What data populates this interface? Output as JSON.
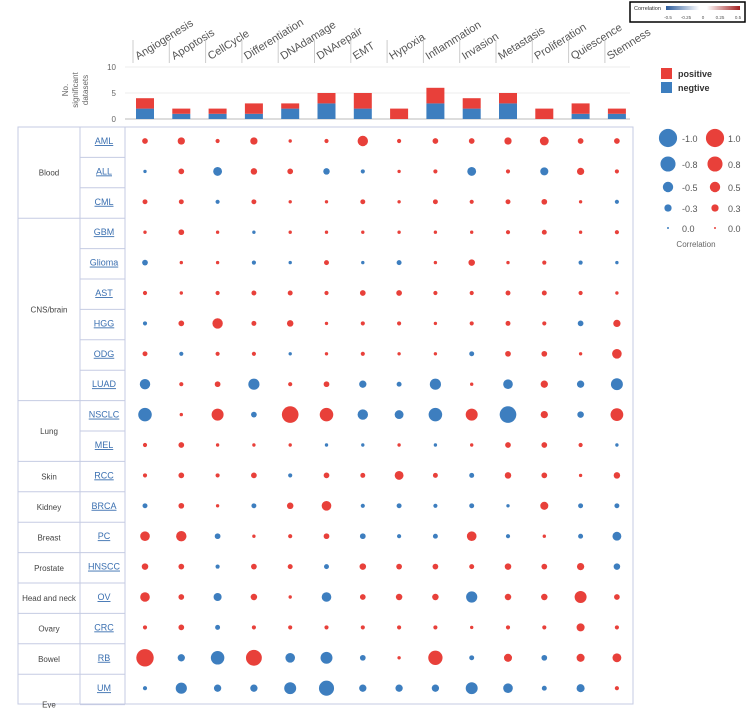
{
  "colors": {
    "positive": "#e8403a",
    "negative": "#3d7ebf",
    "grid_border": "#c5cbe3",
    "text": "#555555",
    "link": "#3a6fb0"
  },
  "colorbar": {
    "title": "Correlation",
    "ticks": [
      "-0.5",
      "-0.25",
      "0",
      "0.25",
      "0.5"
    ]
  },
  "bar_legend": {
    "positive": "positive",
    "negative": "negtive"
  },
  "size_legend": {
    "title": "Correlation",
    "negative_labels": [
      "-1.0",
      "-0.8",
      "-0.5",
      "-0.3",
      "0.0"
    ],
    "positive_labels": [
      "1.0",
      "0.8",
      "0.5",
      "0.3",
      "0.0"
    ],
    "values": [
      1.0,
      0.8,
      0.5,
      0.3,
      0.0
    ]
  },
  "chart_data": {
    "type": "dot-matrix with stacked bar summary",
    "states": [
      "Angiogenesis",
      "Apoptosis",
      "CellCycle",
      "Differentiation",
      "DNAdamage",
      "DNArepair",
      "EMT",
      "Hypoxia",
      "Inflammation",
      "Invasion",
      "Metastasis",
      "Proliferation",
      "Quiescence",
      "Stemness"
    ],
    "bar_chart": {
      "ylabel": [
        "No.",
        "significant",
        "datasets"
      ],
      "yticks": [
        0,
        5,
        10
      ],
      "ylim": [
        0,
        10
      ],
      "series": [
        {
          "name": "positive",
          "values": [
            2,
            1,
            1,
            2,
            1,
            2,
            3,
            2,
            3,
            2,
            2,
            2,
            2,
            1
          ]
        },
        {
          "name": "negtive",
          "values": [
            2,
            1,
            1,
            1,
            2,
            3,
            2,
            0,
            3,
            2,
            3,
            0,
            1,
            1
          ]
        }
      ]
    },
    "groups": [
      {
        "name": "Blood",
        "count": 3
      },
      {
        "name": "CNS/brain",
        "count": 6
      },
      {
        "name": "Lung",
        "count": 2
      },
      {
        "name": "Skin",
        "count": 1
      },
      {
        "name": "Kidney",
        "count": 1
      },
      {
        "name": "Breast",
        "count": 1
      },
      {
        "name": "Prostate",
        "count": 1
      },
      {
        "name": "Head and neck",
        "count": 1
      },
      {
        "name": "Ovary",
        "count": 1
      },
      {
        "name": "Bowel",
        "count": 1
      },
      {
        "name": "Eye",
        "count": 2
      }
    ],
    "cancers": [
      "AML",
      "ALL",
      "CML",
      "GBM",
      "Glioma",
      "AST",
      "HGG",
      "ODG",
      "LUAD",
      "NSCLC",
      "MEL",
      "RCC",
      "BRCA",
      "PC",
      "HNSCC",
      "OV",
      "CRC",
      "RB",
      "UM"
    ],
    "correlations": [
      [
        0.2,
        0.3,
        0.1,
        0.3,
        0.05,
        0.1,
        0.5,
        0.1,
        0.2,
        0.2,
        0.3,
        0.4,
        0.2,
        0.2
      ],
      [
        -0.05,
        0.2,
        -0.4,
        0.25,
        0.2,
        -0.25,
        -0.1,
        0.05,
        0.1,
        -0.4,
        0.1,
        -0.35,
        0.3,
        0.1
      ],
      [
        0.15,
        0.15,
        -0.1,
        0.15,
        0.05,
        0.05,
        0.15,
        0.05,
        0.15,
        0.1,
        0.15,
        0.2,
        0.05,
        -0.1
      ],
      [
        0.05,
        0.2,
        0.05,
        -0.05,
        0.05,
        0.05,
        0.05,
        0.05,
        0.05,
        0.05,
        0.1,
        0.15,
        0.05,
        0.1
      ],
      [
        -0.2,
        0.05,
        0.05,
        -0.1,
        -0.05,
        0.15,
        -0.05,
        -0.15,
        0.05,
        0.25,
        0.05,
        0.1,
        -0.1,
        -0.05
      ],
      [
        0.1,
        0.05,
        0.1,
        0.15,
        0.15,
        0.1,
        0.2,
        0.2,
        0.1,
        0.1,
        0.15,
        0.15,
        0.1,
        0.05
      ],
      [
        -0.1,
        0.2,
        0.5,
        0.15,
        0.25,
        0.05,
        0.1,
        0.1,
        0.05,
        0.1,
        0.15,
        0.1,
        -0.2,
        0.3
      ],
      [
        0.15,
        -0.1,
        0.1,
        0.1,
        -0.05,
        0.05,
        0.1,
        0.05,
        0.05,
        -0.15,
        0.2,
        0.2,
        0.05,
        0.45
      ],
      [
        -0.5,
        0.1,
        0.2,
        -0.55,
        0.1,
        0.2,
        -0.3,
        -0.15,
        -0.55,
        0.05,
        -0.45,
        0.3,
        -0.3,
        -0.6
      ],
      [
        -0.7,
        0.05,
        0.6,
        -0.2,
        0.9,
        0.7,
        -0.5,
        -0.4,
        -0.7,
        0.6,
        -0.9,
        0.3,
        -0.25,
        0.65
      ],
      [
        0.1,
        0.2,
        0.05,
        0.05,
        0.05,
        -0.05,
        -0.05,
        0.05,
        -0.05,
        0.05,
        0.2,
        0.2,
        0.1,
        -0.05
      ],
      [
        0.1,
        0.2,
        0.1,
        0.2,
        -0.1,
        0.2,
        0.15,
        0.4,
        0.15,
        -0.15,
        0.25,
        0.2,
        0.05,
        0.25
      ],
      [
        -0.15,
        0.2,
        0.05,
        -0.15,
        0.25,
        0.45,
        -0.1,
        -0.15,
        -0.1,
        -0.15,
        -0.05,
        0.35,
        -0.15,
        -0.15
      ],
      [
        0.45,
        0.5,
        -0.2,
        0.05,
        0.1,
        0.2,
        -0.2,
        -0.1,
        -0.15,
        0.45,
        -0.1,
        0.05,
        -0.15,
        -0.4
      ],
      [
        0.25,
        0.2,
        -0.1,
        0.2,
        0.15,
        -0.15,
        0.25,
        0.2,
        0.2,
        0.15,
        0.25,
        0.2,
        0.3,
        -0.25
      ],
      [
        0.45,
        0.2,
        -0.35,
        0.25,
        0.05,
        -0.45,
        0.2,
        0.25,
        0.25,
        -0.55,
        0.25,
        0.25,
        0.6,
        0.2
      ],
      [
        0.1,
        0.2,
        -0.15,
        0.1,
        0.1,
        0.1,
        0.1,
        0.1,
        0.1,
        0.05,
        0.1,
        0.1,
        0.35,
        0.1
      ],
      [
        0.95,
        -0.3,
        -0.7,
        0.85,
        -0.45,
        -0.6,
        -0.2,
        0.05,
        0.75,
        -0.15,
        0.35,
        -0.2,
        0.35,
        0.4
      ],
      [
        -0.1,
        -0.55,
        -0.3,
        -0.3,
        -0.6,
        -0.8,
        -0.3,
        -0.3,
        -0.3,
        -0.6,
        -0.45,
        -0.15,
        -0.35,
        0.1
      ]
    ]
  }
}
